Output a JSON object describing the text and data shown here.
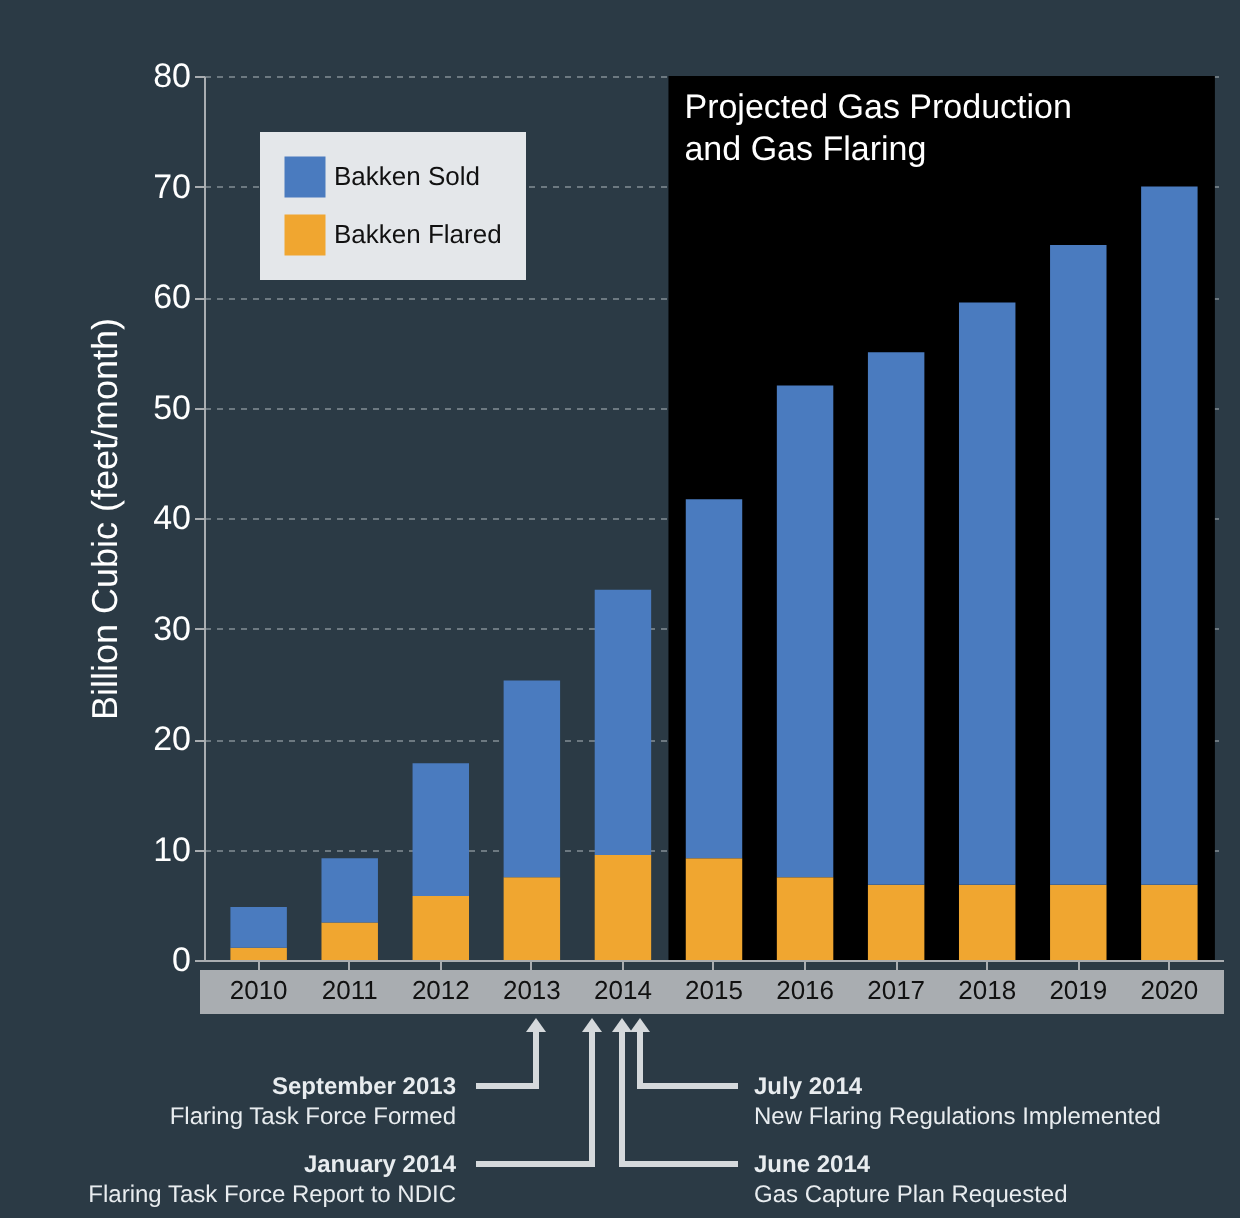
{
  "chart_data": {
    "type": "bar",
    "stacked": true,
    "ylabel": "Billion Cubic (feet/month)",
    "categories": [
      "2010",
      "2011",
      "2012",
      "2013",
      "2014",
      "2015",
      "2016",
      "2017",
      "2018",
      "2019",
      "2020"
    ],
    "series": [
      {
        "name": "Bakken Flared",
        "color": "#f0a630",
        "values": [
          1.1,
          3.4,
          5.8,
          7.5,
          9.5,
          9.2,
          7.5,
          6.8,
          6.8,
          6.8,
          6.8
        ]
      },
      {
        "name": "Bakken Sold",
        "color": "#4a7bbf",
        "values": [
          3.7,
          5.8,
          12.0,
          17.8,
          24.0,
          32.5,
          44.5,
          48.2,
          52.7,
          57.9,
          63.2
        ]
      }
    ],
    "ylim": [
      0,
      80
    ],
    "yticks": [
      0,
      10,
      20,
      30,
      40,
      50,
      60,
      70,
      80
    ],
    "grid": "y",
    "legend": "top left",
    "bands": [
      {
        "axis": "x",
        "from": "2015",
        "to": "2020",
        "label": "Projected Gas Production and Gas Flaring",
        "color": "#000000"
      }
    ],
    "annotations": [
      "September 2013\nFlaring Task Force Formed",
      "January 2014\nFlaring Task Force Report to NDIC",
      "July 2014\nNew Flaring Regulations Implemented",
      "June 2014\nGas Capture Plan Requested"
    ]
  }
}
